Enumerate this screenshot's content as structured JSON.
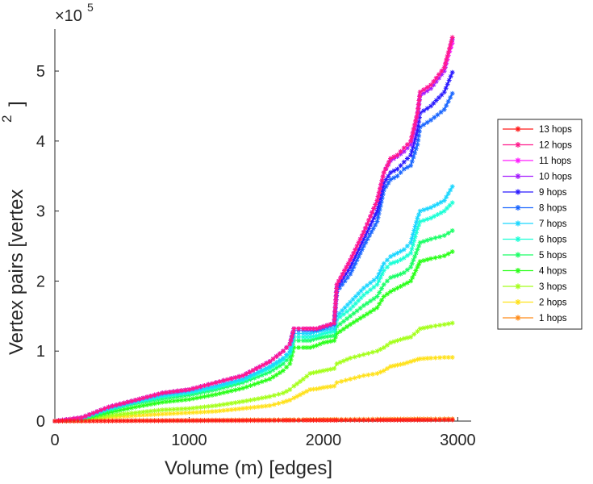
{
  "chart_data": {
    "type": "line",
    "title": "",
    "xlabel": "Volume (m) [edges]",
    "ylabel": "Vertex pairs [vertex",
    "ylabel_superscript": "2",
    "ylabel_suffix": "]",
    "y_multiplier": {
      "base": "×10",
      "exponent": "5"
    },
    "xlim": [
      0,
      3100
    ],
    "ylim": [
      0,
      5.6
    ],
    "x_ticks": [
      0,
      1000,
      2000,
      3000
    ],
    "x_tick_labels": [
      "0",
      "1000",
      "2000",
      "3000"
    ],
    "y_ticks": [
      0,
      1,
      2,
      3,
      4,
      5
    ],
    "y_tick_labels": [
      "0",
      "1",
      "2",
      "3",
      "4",
      "5"
    ],
    "grid": false,
    "legend_position": "right",
    "x": [
      0,
      200,
      400,
      600,
      800,
      1000,
      1200,
      1400,
      1600,
      1700,
      1750,
      1780,
      1850,
      1900,
      1950,
      2000,
      2080,
      2100,
      2200,
      2300,
      2400,
      2450,
      2500,
      2550,
      2600,
      2650,
      2700,
      2720,
      2800,
      2900,
      2960
    ],
    "series": [
      {
        "name": "13 hops",
        "color": "#ff1a1a",
        "values": [
          0,
          0,
          0.002,
          0.004,
          0.005,
          0.006,
          0.007,
          0.008,
          0.009,
          0.01,
          0.01,
          0.01,
          0.011,
          0.011,
          0.011,
          0.012,
          0.012,
          0.012,
          0.013,
          0.013,
          0.014,
          0.014,
          0.014,
          0.015,
          0.015,
          0.015,
          0.016,
          0.016,
          0.016,
          0.017,
          0.017
        ]
      },
      {
        "name": "12 hops",
        "color": "#ff1a8c",
        "values": [
          0,
          0.05,
          0.2,
          0.3,
          0.4,
          0.45,
          0.55,
          0.65,
          0.85,
          1.0,
          1.1,
          1.32,
          1.32,
          1.32,
          1.32,
          1.35,
          1.4,
          1.95,
          2.3,
          2.7,
          3.15,
          3.55,
          3.75,
          3.8,
          3.9,
          4.0,
          4.4,
          4.7,
          4.8,
          5.05,
          5.48
        ]
      },
      {
        "name": "11 hops",
        "color": "#ff1aff",
        "values": [
          0,
          0.05,
          0.2,
          0.3,
          0.4,
          0.45,
          0.55,
          0.65,
          0.85,
          1.0,
          1.1,
          1.32,
          1.32,
          1.32,
          1.32,
          1.35,
          1.4,
          1.95,
          2.3,
          2.7,
          3.15,
          3.55,
          3.75,
          3.8,
          3.9,
          4.0,
          4.4,
          4.7,
          4.8,
          5.05,
          5.4
        ]
      },
      {
        "name": "10 hops",
        "color": "#a41aff",
        "values": [
          0,
          0.05,
          0.2,
          0.3,
          0.4,
          0.45,
          0.55,
          0.65,
          0.85,
          1.0,
          1.1,
          1.32,
          1.32,
          1.32,
          1.32,
          1.35,
          1.4,
          1.95,
          2.3,
          2.7,
          3.15,
          3.55,
          3.72,
          3.78,
          3.85,
          3.95,
          4.35,
          4.65,
          4.75,
          5.0,
          5.45
        ]
      },
      {
        "name": "9 hops",
        "color": "#2a1aff",
        "values": [
          0,
          0.05,
          0.2,
          0.3,
          0.4,
          0.45,
          0.55,
          0.65,
          0.85,
          1.0,
          1.1,
          1.32,
          1.32,
          1.32,
          1.32,
          1.35,
          1.4,
          1.9,
          2.2,
          2.6,
          3.0,
          3.4,
          3.55,
          3.6,
          3.7,
          3.8,
          4.15,
          4.4,
          4.5,
          4.7,
          4.98
        ]
      },
      {
        "name": "8 hops",
        "color": "#1a66ff",
        "values": [
          0,
          0.05,
          0.2,
          0.3,
          0.4,
          0.45,
          0.55,
          0.65,
          0.85,
          1.0,
          1.1,
          1.3,
          1.3,
          1.3,
          1.3,
          1.33,
          1.38,
          1.85,
          2.1,
          2.5,
          2.85,
          3.3,
          3.45,
          3.5,
          3.6,
          3.65,
          3.95,
          4.2,
          4.3,
          4.45,
          4.68
        ]
      },
      {
        "name": "7 hops",
        "color": "#1ad6ff",
        "values": [
          0,
          0.04,
          0.18,
          0.28,
          0.37,
          0.42,
          0.5,
          0.6,
          0.78,
          0.9,
          1.0,
          1.25,
          1.25,
          1.25,
          1.28,
          1.3,
          1.32,
          1.5,
          1.7,
          1.9,
          2.05,
          2.25,
          2.35,
          2.4,
          2.45,
          2.55,
          2.9,
          3.0,
          3.05,
          3.15,
          3.35
        ]
      },
      {
        "name": "6 hops",
        "color": "#1affd6",
        "values": [
          0,
          0.04,
          0.17,
          0.27,
          0.35,
          0.4,
          0.48,
          0.58,
          0.75,
          0.87,
          0.97,
          1.2,
          1.2,
          1.2,
          1.22,
          1.25,
          1.28,
          1.45,
          1.6,
          1.8,
          1.95,
          2.15,
          2.25,
          2.28,
          2.33,
          2.4,
          2.75,
          2.85,
          2.9,
          3.0,
          3.12
        ]
      },
      {
        "name": "5 hops",
        "color": "#1aff66",
        "values": [
          0,
          0.03,
          0.15,
          0.25,
          0.32,
          0.37,
          0.45,
          0.55,
          0.7,
          0.82,
          0.92,
          1.15,
          1.15,
          1.15,
          1.18,
          1.2,
          1.22,
          1.35,
          1.5,
          1.65,
          1.78,
          1.95,
          2.05,
          2.08,
          2.12,
          2.2,
          2.45,
          2.55,
          2.6,
          2.65,
          2.72
        ]
      },
      {
        "name": "4 hops",
        "color": "#2aff1a",
        "values": [
          0,
          0.03,
          0.12,
          0.2,
          0.27,
          0.31,
          0.38,
          0.47,
          0.6,
          0.72,
          0.82,
          1.05,
          1.05,
          1.05,
          1.08,
          1.12,
          1.15,
          1.25,
          1.38,
          1.5,
          1.62,
          1.78,
          1.85,
          1.9,
          1.95,
          2.0,
          2.2,
          2.28,
          2.32,
          2.36,
          2.42
        ]
      },
      {
        "name": "3 hops",
        "color": "#a4ff1a",
        "values": [
          0,
          0.01,
          0.08,
          0.12,
          0.16,
          0.18,
          0.22,
          0.28,
          0.35,
          0.4,
          0.45,
          0.5,
          0.6,
          0.68,
          0.7,
          0.72,
          0.75,
          0.82,
          0.9,
          0.95,
          1.0,
          1.05,
          1.12,
          1.15,
          1.18,
          1.2,
          1.28,
          1.32,
          1.35,
          1.38,
          1.4
        ]
      },
      {
        "name": "2 hops",
        "color": "#ffe11a",
        "values": [
          0,
          0.005,
          0.05,
          0.08,
          0.1,
          0.12,
          0.14,
          0.18,
          0.22,
          0.27,
          0.3,
          0.33,
          0.4,
          0.45,
          0.46,
          0.48,
          0.5,
          0.55,
          0.6,
          0.65,
          0.68,
          0.72,
          0.78,
          0.8,
          0.82,
          0.85,
          0.88,
          0.89,
          0.9,
          0.91,
          0.91
        ]
      },
      {
        "name": "1 hops",
        "color": "#ff8c1a",
        "values": [
          0,
          0.002,
          0.005,
          0.008,
          0.01,
          0.012,
          0.014,
          0.016,
          0.018,
          0.019,
          0.02,
          0.02,
          0.021,
          0.022,
          0.022,
          0.023,
          0.024,
          0.024,
          0.025,
          0.026,
          0.027,
          0.027,
          0.028,
          0.028,
          0.029,
          0.029,
          0.03,
          0.03,
          0.03,
          0.031,
          0.031
        ]
      }
    ]
  }
}
